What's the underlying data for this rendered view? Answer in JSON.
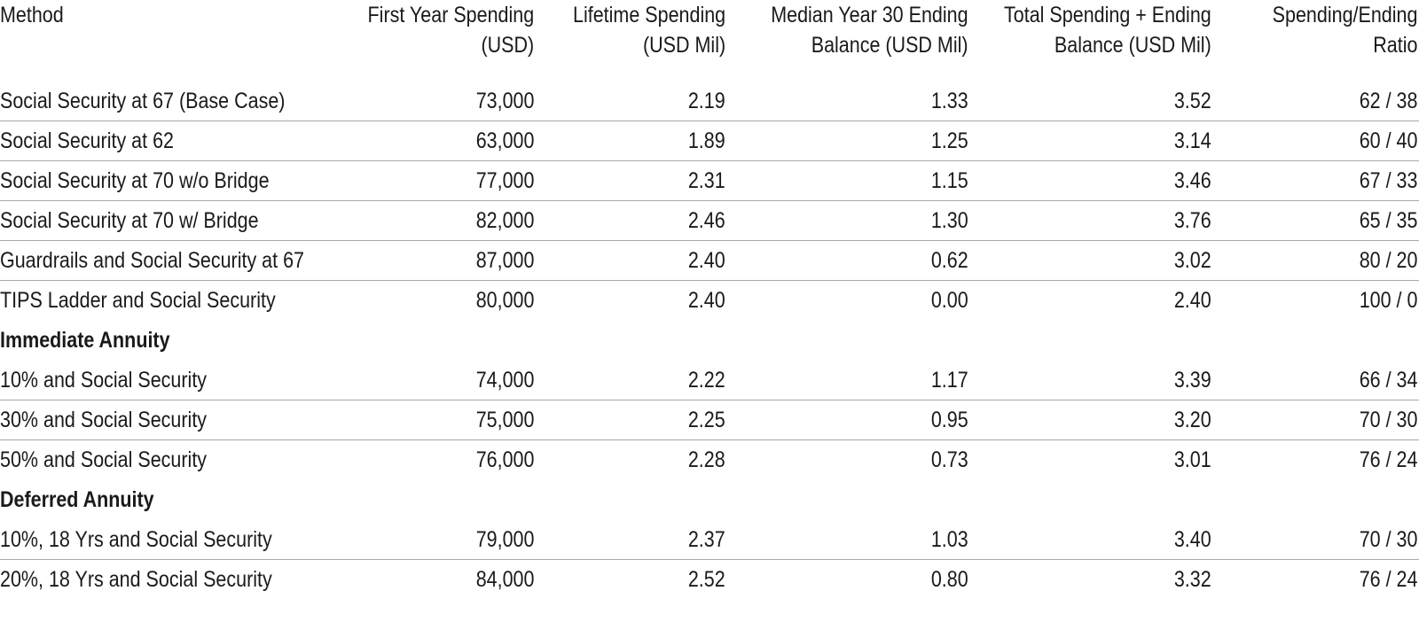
{
  "columns": [
    "Method",
    "First Year Spending\n(USD)",
    "Lifetime Spending\n(USD Mil)",
    "Median Year 30 Ending\nBalance (USD Mil)",
    "Total Spending + Ending\nBalance (USD Mil)",
    "Spending/Ending\nRatio"
  ],
  "rows": [
    [
      "Social Security at 67 (Base Case)",
      "73,000",
      "2.19",
      "1.33",
      "3.52",
      "62 / 38"
    ],
    [
      "Social Security at 62",
      "63,000",
      "1.89",
      "1.25",
      "3.14",
      "60 / 40"
    ],
    [
      "Social Security at 70 w/o Bridge",
      "77,000",
      "2.31",
      "1.15",
      "3.46",
      "67 / 33"
    ],
    [
      "Social Security at 70 w/ Bridge",
      "82,000",
      "2.46",
      "1.30",
      "3.76",
      "65 / 35"
    ],
    [
      "Guardrails and Social Security at 67",
      "87,000",
      "2.40",
      "0.62",
      "3.02",
      "80 / 20"
    ],
    [
      "TIPS Ladder and Social Security",
      "80,000",
      "2.40",
      "0.00",
      "2.40",
      "100 / 0"
    ]
  ],
  "sections": [
    {
      "title": "Immediate Annuity",
      "rows": [
        [
          "10% and Social Security",
          "74,000",
          "2.22",
          "1.17",
          "3.39",
          "66 / 34"
        ],
        [
          "30% and Social Security",
          "75,000",
          "2.25",
          "0.95",
          "3.20",
          "70 / 30"
        ],
        [
          "50% and Social Security",
          "76,000",
          "2.28",
          "0.73",
          "3.01",
          "76 / 24"
        ]
      ]
    },
    {
      "title": "Deferred Annuity",
      "rows": [
        [
          "10%, 18 Yrs and Social Security",
          "79,000",
          "2.37",
          "1.03",
          "3.40",
          "70 / 30"
        ],
        [
          "20%, 18 Yrs and Social Security",
          "84,000",
          "2.52",
          "0.80",
          "3.32",
          "76 / 24"
        ]
      ]
    }
  ]
}
